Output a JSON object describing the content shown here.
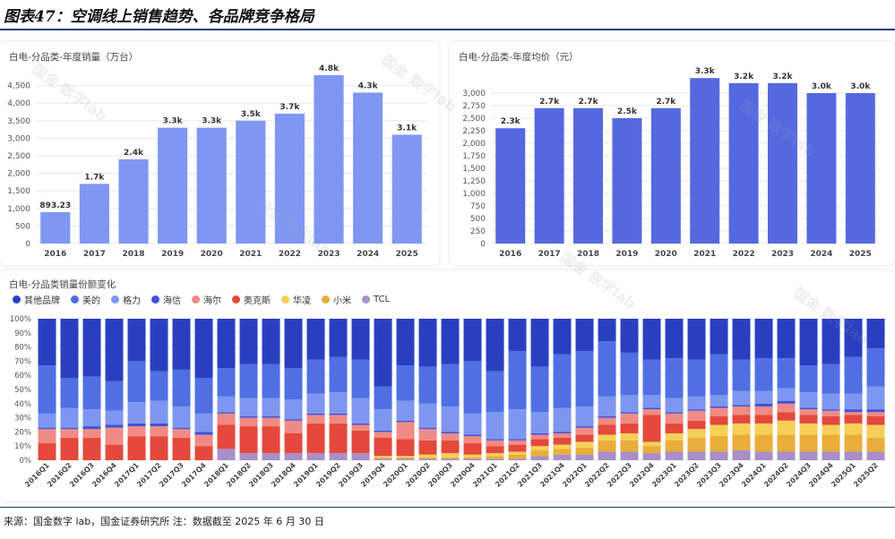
{
  "figure_title": "图表47：空调线上销售趋势、各品牌竞争格局",
  "source": "来源：国金数字 lab，国金证券研究所 注：数据截至 2025 年 6 月 30 日",
  "watermark": "国金 数字lab",
  "chart_data": [
    {
      "type": "bar",
      "title": "白电-分品类-年度销量（万台）",
      "categories": [
        "2016",
        "2017",
        "2018",
        "2019",
        "2020",
        "2021",
        "2022",
        "2023",
        "2024",
        "2025"
      ],
      "values": [
        893.23,
        1700,
        2400,
        3300,
        3300,
        3500,
        3700,
        4800,
        4300,
        3100
      ],
      "labels": [
        "893.23",
        "1.7k",
        "2.4k",
        "3.3k",
        "3.3k",
        "3.5k",
        "3.7k",
        "4.8k",
        "4.3k",
        "3.1k"
      ],
      "ylim": [
        0,
        5000
      ],
      "yticks": [
        0,
        500,
        1000,
        1500,
        2000,
        2500,
        3000,
        3500,
        4000,
        4500
      ],
      "color": "#7f97f3"
    },
    {
      "type": "bar",
      "title": "白电-分品类-年度均价（元）",
      "categories": [
        "2016",
        "2017",
        "2018",
        "2019",
        "2020",
        "2021",
        "2022",
        "2023",
        "2024",
        "2025"
      ],
      "values": [
        2300,
        2700,
        2700,
        2500,
        2700,
        3300,
        3200,
        3200,
        3000,
        3000
      ],
      "labels": [
        "2.3k",
        "2.7k",
        "2.7k",
        "2.5k",
        "2.7k",
        "3.3k",
        "3.2k",
        "3.2k",
        "3.0k",
        "3.0k"
      ],
      "ylim": [
        0,
        3500
      ],
      "yticks": [
        0,
        250,
        500,
        750,
        1000,
        1250,
        1500,
        1750,
        2000,
        2250,
        2500,
        2750,
        3000
      ],
      "color": "#5469e0"
    },
    {
      "type": "bar",
      "stacked": true,
      "title": "白电-分品类销量份额变化",
      "categories": [
        "2016Q1",
        "2016Q2",
        "2016Q3",
        "2016Q4",
        "2017Q1",
        "2017Q2",
        "2017Q3",
        "2017Q4",
        "2018Q1",
        "2018Q2",
        "2018Q3",
        "2018Q4",
        "2019Q1",
        "2019Q2",
        "2019Q3",
        "2019Q4",
        "2020Q1",
        "2020Q2",
        "2020Q3",
        "2020Q4",
        "2021Q1",
        "2021Q2",
        "2021Q3",
        "2021Q4",
        "2022Q1",
        "2022Q2",
        "2022Q3",
        "2022Q4",
        "2023Q1",
        "2023Q2",
        "2023Q3",
        "2023Q4",
        "2024Q1",
        "2024Q2",
        "2024Q3",
        "2024Q4",
        "2025Q1",
        "2025Q2"
      ],
      "yticks": [
        "0%",
        "10%",
        "20%",
        "30%",
        "40%",
        "50%",
        "60%",
        "70%",
        "80%",
        "90%",
        "100%"
      ],
      "series": [
        {
          "name": "TCL",
          "color": "#a98fc7",
          "values": [
            0,
            0,
            0,
            0,
            0,
            0,
            0,
            0,
            8,
            5,
            5,
            5,
            5,
            5,
            5,
            1,
            1,
            1,
            1,
            1,
            1,
            1,
            3,
            4,
            4,
            6,
            6,
            5,
            6,
            6,
            6,
            7,
            6,
            6,
            6,
            6,
            6,
            6
          ]
        },
        {
          "name": "小米",
          "color": "#e9ad3a",
          "values": [
            0,
            0,
            0,
            0,
            0,
            0,
            0,
            0,
            0,
            0,
            0,
            0,
            0,
            0,
            0,
            1,
            1,
            1,
            1,
            1,
            2,
            3,
            4,
            4,
            5,
            8,
            8,
            5,
            8,
            10,
            11,
            11,
            12,
            12,
            12,
            12,
            12,
            10
          ]
        },
        {
          "name": "华凌",
          "color": "#f5cf58",
          "values": [
            0,
            0,
            0,
            0,
            0,
            0,
            0,
            0,
            0,
            0,
            0,
            0,
            0,
            0,
            0,
            1,
            1,
            2,
            3,
            2,
            2,
            2,
            3,
            3,
            4,
            4,
            5,
            3,
            5,
            6,
            8,
            8,
            8,
            10,
            8,
            7,
            8,
            9
          ]
        },
        {
          "name": "奥克斯",
          "color": "#e4493b",
          "values": [
            12,
            16,
            16,
            11,
            17,
            17,
            16,
            10,
            17,
            19,
            19,
            14,
            21,
            21,
            16,
            13,
            12,
            10,
            9,
            8,
            5,
            5,
            5,
            5,
            5,
            7,
            7,
            19,
            7,
            6,
            6,
            6,
            6,
            6,
            6,
            6,
            6,
            6
          ]
        },
        {
          "name": "海尔",
          "color": "#f08a84",
          "values": [
            10,
            6,
            6,
            12,
            7,
            7,
            6,
            8,
            8,
            6,
            6,
            9,
            6,
            6,
            4,
            4,
            12,
            8,
            5,
            5,
            4,
            3,
            3,
            3,
            5,
            5,
            7,
            4,
            7,
            7,
            6,
            6,
            6,
            6,
            4,
            4,
            2,
            3
          ]
        },
        {
          "name": "海信",
          "color": "#3f51d6",
          "values": [
            1,
            1,
            2,
            2,
            2,
            2,
            1,
            2,
            1,
            1,
            1,
            1,
            1,
            1,
            1,
            1,
            1,
            1,
            1,
            1,
            1,
            1,
            1,
            1,
            1,
            1,
            1,
            1,
            1,
            1,
            1,
            1,
            2,
            2,
            1,
            1,
            2,
            2
          ]
        },
        {
          "name": "格力",
          "color": "#7d96ef",
          "values": [
            10,
            14,
            12,
            10,
            15,
            16,
            15,
            13,
            11,
            13,
            13,
            14,
            14,
            15,
            18,
            15,
            14,
            17,
            18,
            15,
            19,
            21,
            15,
            17,
            14,
            14,
            12,
            9,
            10,
            9,
            8,
            10,
            9,
            9,
            11,
            11,
            11,
            16
          ]
        },
        {
          "name": "美的",
          "color": "#4f6fe3",
          "values": [
            34,
            21,
            23,
            21,
            29,
            21,
            26,
            25,
            20,
            24,
            24,
            22,
            24,
            25,
            27,
            16,
            25,
            26,
            30,
            37,
            29,
            41,
            32,
            38,
            39,
            39,
            30,
            25,
            28,
            26,
            29,
            22,
            23,
            21,
            19,
            21,
            26,
            27
          ]
        },
        {
          "name": "其他品牌",
          "color": "#2a3fc0",
          "values": [
            33,
            42,
            41,
            44,
            30,
            37,
            36,
            42,
            35,
            32,
            32,
            35,
            29,
            27,
            29,
            48,
            33,
            34,
            32,
            30,
            37,
            23,
            34,
            25,
            23,
            16,
            24,
            29,
            28,
            29,
            25,
            29,
            28,
            28,
            33,
            32,
            27,
            21
          ]
        }
      ]
    }
  ],
  "legend_order": [
    "其他品牌",
    "美的",
    "格力",
    "海信",
    "海尔",
    "奥克斯",
    "华凌",
    "小米",
    "TCL"
  ]
}
